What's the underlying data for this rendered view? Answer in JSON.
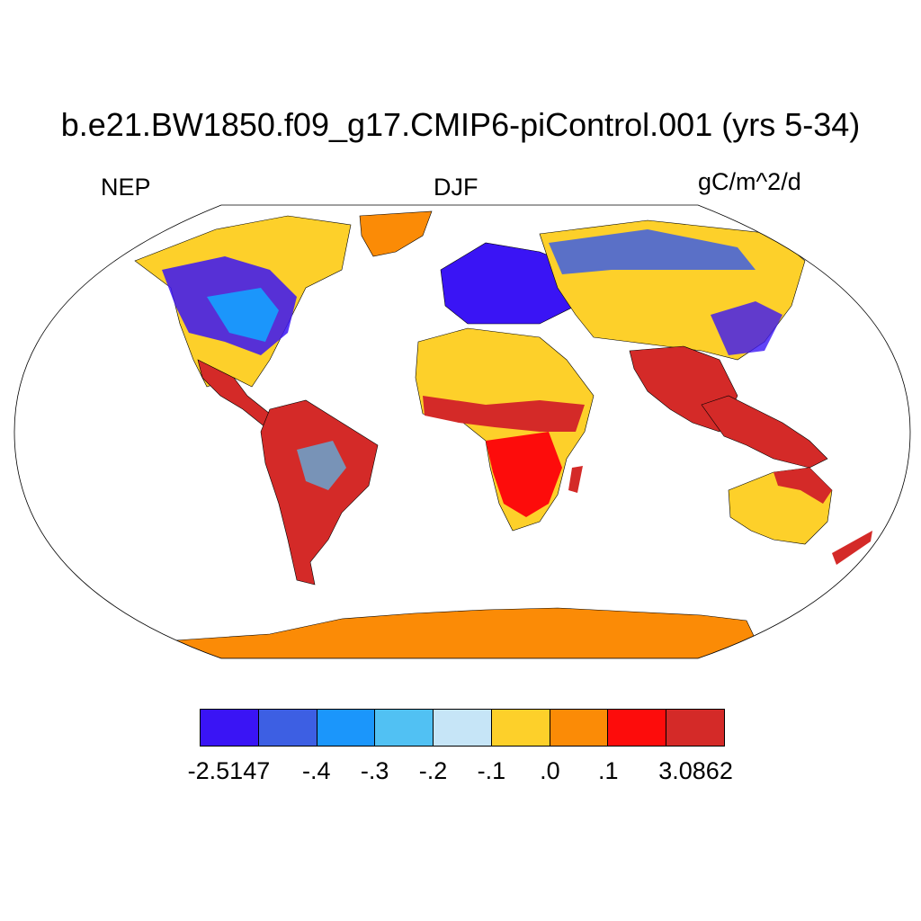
{
  "title": "b.e21.BW1850.f09_g17.CMIP6-piControl.001 (yrs 5-34)",
  "left_label": "NEP",
  "center_label": "DJF",
  "right_label": "gC/m^2/d",
  "colorbar": {
    "colors": [
      "#3a14f5",
      "#3d5fe3",
      "#1b96fb",
      "#51c1f3",
      "#c6e5f7",
      "#fdd02a",
      "#fb8b06",
      "#fd0c0b",
      "#d42a28"
    ],
    "labels": [
      "-2.5147",
      "-.4",
      "-.3",
      "-.2",
      "-.1",
      ".0",
      ".1",
      "3.0862"
    ]
  },
  "map": {
    "projection": "Robinson",
    "ocean_color": "#ffffff",
    "antarctica_color": "#fb8b06"
  }
}
